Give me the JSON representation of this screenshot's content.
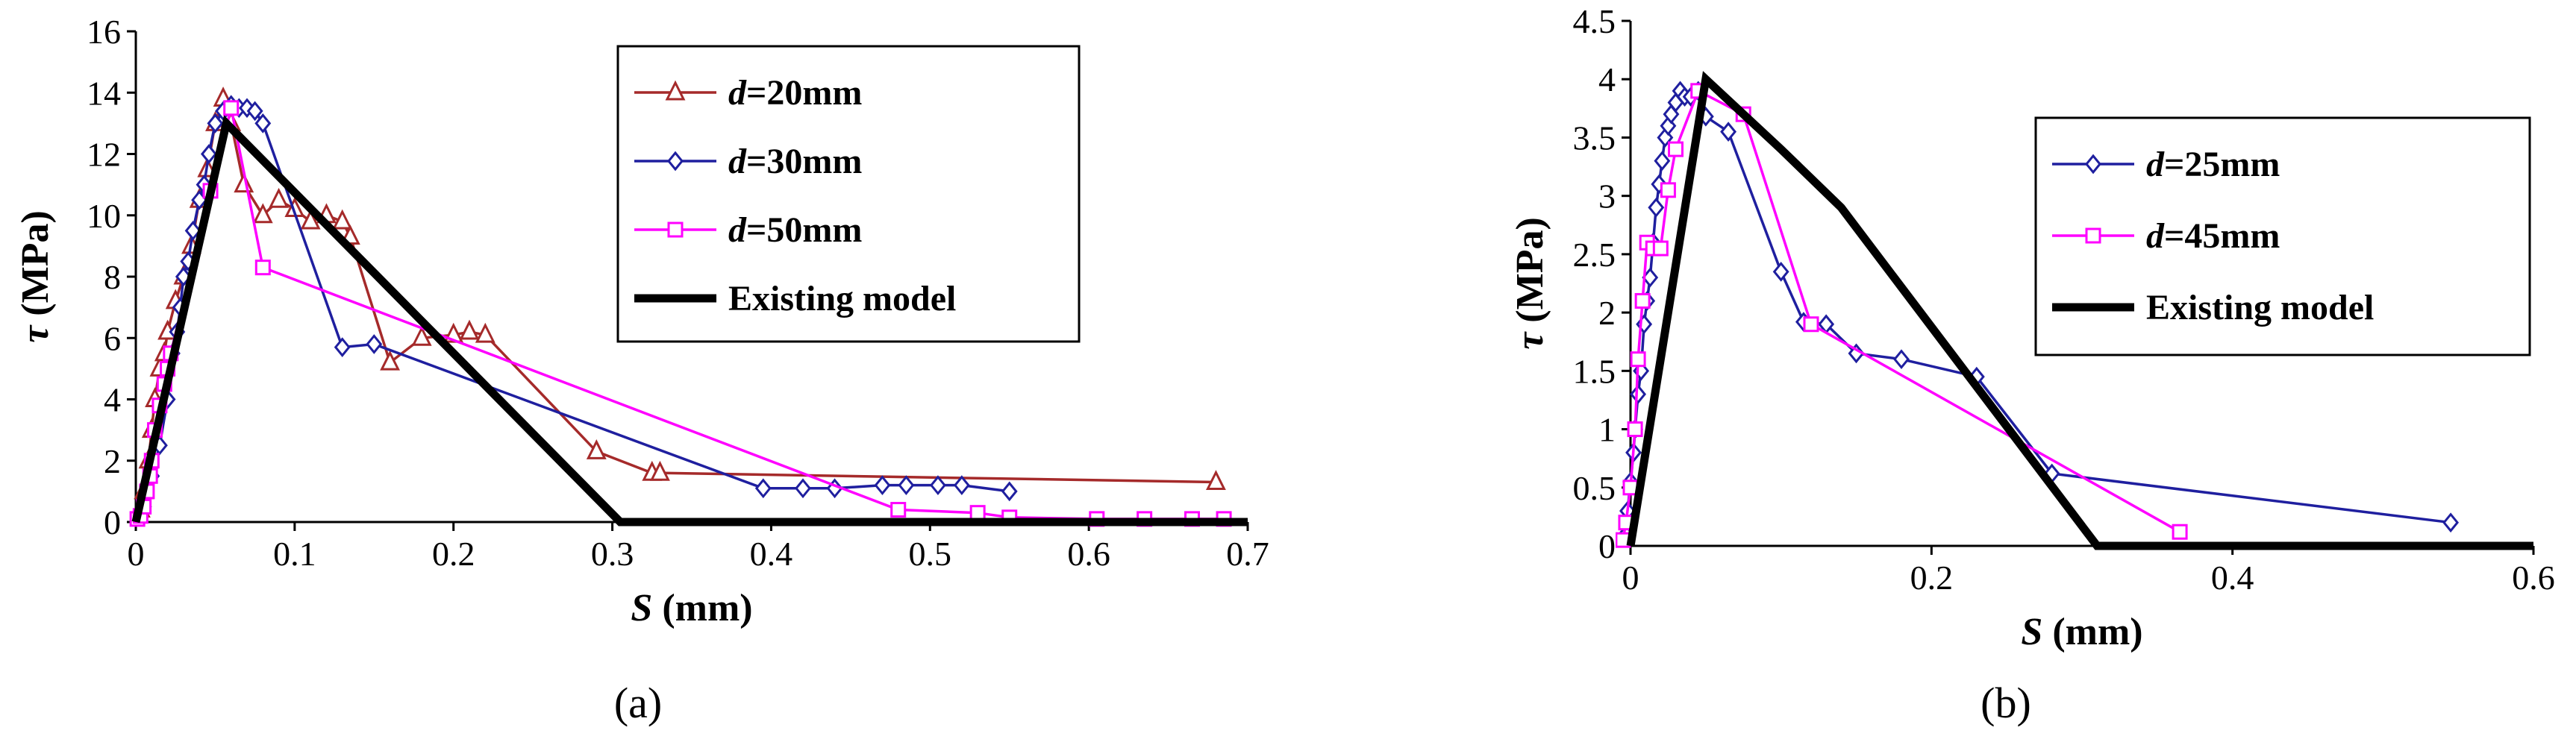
{
  "chart_data": [
    {
      "type": "line",
      "panel_label": "(a)",
      "xlabel": "S (mm)",
      "ylabel": "τ (MPa)",
      "xlim": [
        0,
        0.7
      ],
      "ylim": [
        0,
        16
      ],
      "xticks": [
        "0",
        "0.1",
        "0.2",
        "0.3",
        "0.4",
        "0.5",
        "0.6",
        "0.7"
      ],
      "yticks": [
        "0",
        "2",
        "4",
        "6",
        "8",
        "10",
        "12",
        "14",
        "16"
      ],
      "legend_position": "top-right",
      "series": [
        {
          "name": "d=20mm",
          "label_var": "d",
          "label_rest": "=20mm",
          "color": "#a52a2a",
          "marker": "triangle",
          "points": [
            [
              0.003,
              0.4
            ],
            [
              0.005,
              1.0
            ],
            [
              0.008,
              2.0
            ],
            [
              0.01,
              3.0
            ],
            [
              0.012,
              4.0
            ],
            [
              0.015,
              5.0
            ],
            [
              0.018,
              5.5
            ],
            [
              0.02,
              6.2
            ],
            [
              0.025,
              7.2
            ],
            [
              0.03,
              8.0
            ],
            [
              0.035,
              9.0
            ],
            [
              0.04,
              10.5
            ],
            [
              0.045,
              11.5
            ],
            [
              0.05,
              13.0
            ],
            [
              0.055,
              13.8
            ],
            [
              0.06,
              13.0
            ],
            [
              0.068,
              11.0
            ],
            [
              0.08,
              10.0
            ],
            [
              0.09,
              10.5
            ],
            [
              0.1,
              10.2
            ],
            [
              0.11,
              9.8
            ],
            [
              0.12,
              10.0
            ],
            [
              0.13,
              9.8
            ],
            [
              0.135,
              9.3
            ],
            [
              0.16,
              5.2
            ],
            [
              0.18,
              6.0
            ],
            [
              0.2,
              6.1
            ],
            [
              0.21,
              6.2
            ],
            [
              0.22,
              6.1
            ],
            [
              0.29,
              2.3
            ],
            [
              0.325,
              1.6
            ],
            [
              0.33,
              1.6
            ],
            [
              0.68,
              1.3
            ]
          ]
        },
        {
          "name": "d=30mm",
          "label_var": "d",
          "label_rest": "=30mm",
          "color": "#1f1f9f",
          "marker": "diamond",
          "points": [
            [
              0.005,
              0.5
            ],
            [
              0.01,
              1.5
            ],
            [
              0.015,
              2.5
            ],
            [
              0.02,
              4.0
            ],
            [
              0.023,
              5.5
            ],
            [
              0.026,
              6.2
            ],
            [
              0.028,
              7.0
            ],
            [
              0.03,
              8.0
            ],
            [
              0.033,
              8.5
            ],
            [
              0.036,
              9.5
            ],
            [
              0.04,
              10.5
            ],
            [
              0.043,
              11.0
            ],
            [
              0.046,
              12.0
            ],
            [
              0.05,
              13.0
            ],
            [
              0.055,
              13.4
            ],
            [
              0.06,
              13.6
            ],
            [
              0.065,
              13.5
            ],
            [
              0.07,
              13.5
            ],
            [
              0.075,
              13.4
            ],
            [
              0.08,
              13.0
            ],
            [
              0.13,
              5.7
            ],
            [
              0.15,
              5.8
            ],
            [
              0.395,
              1.1
            ],
            [
              0.42,
              1.1
            ],
            [
              0.44,
              1.1
            ],
            [
              0.47,
              1.2
            ],
            [
              0.485,
              1.2
            ],
            [
              0.505,
              1.2
            ],
            [
              0.52,
              1.2
            ],
            [
              0.55,
              1.0
            ]
          ]
        },
        {
          "name": "d=50mm",
          "label_var": "d",
          "label_rest": "=50mm",
          "color": "#ff00ff",
          "marker": "square",
          "points": [
            [
              0.001,
              0.1
            ],
            [
              0.003,
              0.2
            ],
            [
              0.005,
              0.5
            ],
            [
              0.007,
              1.0
            ],
            [
              0.009,
              1.5
            ],
            [
              0.01,
              2.0
            ],
            [
              0.012,
              3.0
            ],
            [
              0.015,
              3.8
            ],
            [
              0.018,
              4.5
            ],
            [
              0.02,
              5.0
            ],
            [
              0.022,
              5.5
            ],
            [
              0.047,
              10.8
            ],
            [
              0.06,
              13.5
            ],
            [
              0.08,
              8.3
            ],
            [
              0.48,
              0.4
            ],
            [
              0.53,
              0.3
            ],
            [
              0.55,
              0.15
            ],
            [
              0.605,
              0.1
            ],
            [
              0.635,
              0.1
            ],
            [
              0.665,
              0.1
            ],
            [
              0.685,
              0.1
            ]
          ]
        },
        {
          "name": "Existing model",
          "label_var": "",
          "label_rest": "Existing model",
          "color": "#000000",
          "marker": "none",
          "thick": true,
          "points": [
            [
              0,
              0
            ],
            [
              0.057,
              13.0
            ],
            [
              0.305,
              0
            ],
            [
              0.7,
              0
            ]
          ]
        }
      ]
    },
    {
      "type": "line",
      "panel_label": "(b)",
      "xlabel": "S (mm)",
      "ylabel": "τ (MPa)",
      "xlim": [
        0,
        0.6
      ],
      "ylim": [
        0,
        4.5
      ],
      "xticks": [
        "0",
        "0.2",
        "0.4",
        "0.6"
      ],
      "yticks": [
        "0",
        "0.5",
        "1",
        "1.5",
        "2",
        "2.5",
        "3",
        "3.5",
        "4",
        "4.5"
      ],
      "legend_position": "right",
      "series": [
        {
          "name": "d=25mm",
          "label_var": "d",
          "label_rest": "=25mm",
          "color": "#1f1f9f",
          "marker": "diamond",
          "points": [
            [
              -0.003,
              0.1
            ],
            [
              -0.002,
              0.3
            ],
            [
              0.0,
              0.55
            ],
            [
              0.002,
              0.8
            ],
            [
              0.003,
              1.0
            ],
            [
              0.005,
              1.3
            ],
            [
              0.007,
              1.5
            ],
            [
              0.009,
              1.9
            ],
            [
              0.011,
              2.1
            ],
            [
              0.013,
              2.3
            ],
            [
              0.015,
              2.6
            ],
            [
              0.017,
              2.9
            ],
            [
              0.019,
              3.1
            ],
            [
              0.021,
              3.3
            ],
            [
              0.023,
              3.5
            ],
            [
              0.025,
              3.6
            ],
            [
              0.027,
              3.7
            ],
            [
              0.03,
              3.8
            ],
            [
              0.033,
              3.9
            ],
            [
              0.036,
              3.85
            ],
            [
              0.04,
              3.85
            ],
            [
              0.045,
              3.9
            ],
            [
              0.05,
              3.68
            ],
            [
              0.065,
              3.55
            ],
            [
              0.1,
              2.35
            ],
            [
              0.115,
              1.92
            ],
            [
              0.13,
              1.9
            ],
            [
              0.15,
              1.65
            ],
            [
              0.18,
              1.6
            ],
            [
              0.23,
              1.45
            ],
            [
              0.28,
              0.62
            ],
            [
              0.545,
              0.2
            ]
          ]
        },
        {
          "name": "d=45mm",
          "label_var": "d",
          "label_rest": "=45mm",
          "color": "#ff00ff",
          "marker": "square",
          "points": [
            [
              -0.005,
              0.05
            ],
            [
              -0.003,
              0.2
            ],
            [
              0.0,
              0.5
            ],
            [
              0.003,
              1.0
            ],
            [
              0.005,
              1.6
            ],
            [
              0.008,
              2.1
            ],
            [
              0.011,
              2.6
            ],
            [
              0.015,
              2.55
            ],
            [
              0.02,
              2.55
            ],
            [
              0.025,
              3.05
            ],
            [
              0.03,
              3.4
            ],
            [
              0.045,
              3.9
            ],
            [
              0.075,
              3.7
            ],
            [
              0.12,
              1.9
            ],
            [
              0.365,
              0.12
            ]
          ]
        },
        {
          "name": "Existing model",
          "label_var": "",
          "label_rest": "Existing model",
          "color": "#000000",
          "marker": "none",
          "thick": true,
          "points": [
            [
              0,
              0
            ],
            [
              0.05,
              4.0
            ],
            [
              0.1,
              3.4
            ],
            [
              0.14,
              2.9
            ],
            [
              0.31,
              0
            ],
            [
              0.6,
              0
            ]
          ]
        }
      ]
    }
  ]
}
